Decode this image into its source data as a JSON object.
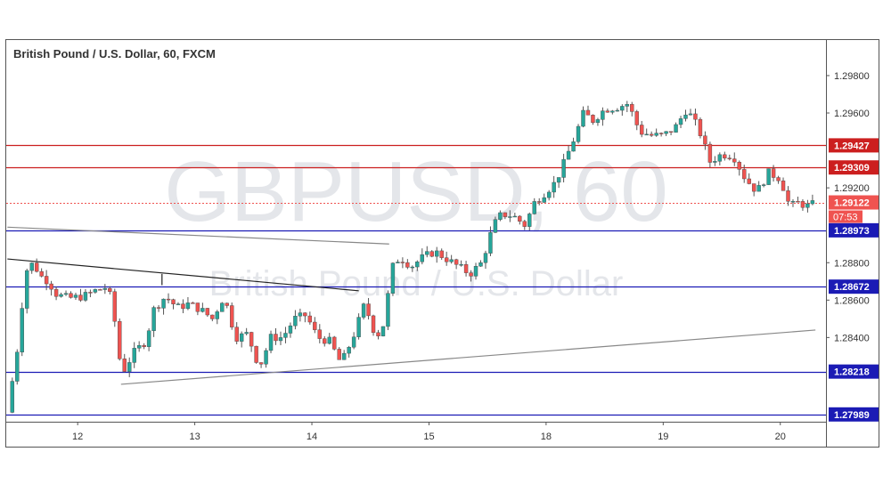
{
  "chart_data": {
    "type": "candlestick",
    "title": "British Pound / U.S. Dollar, 60, FXCM",
    "watermark": {
      "symbol": "GBPUSD, 60",
      "name": "British Pound / U.S. Dollar"
    },
    "y_ticks": [
      "1.29800",
      "1.29600",
      "1.29200",
      "1.28800",
      "1.28600",
      "1.28400"
    ],
    "ylim": [
      1.2795,
      1.2999
    ],
    "x_ticks": [
      {
        "label": "12",
        "t": 12.0
      },
      {
        "label": "13",
        "t": 13.0
      },
      {
        "label": "14",
        "t": 14.0
      },
      {
        "label": "15",
        "t": 15.0
      },
      {
        "label": "18",
        "t": 16.0
      },
      {
        "label": "19",
        "t": 17.0
      },
      {
        "label": "20",
        "t": 18.0
      }
    ],
    "xlim": [
      11.39,
      18.39
    ],
    "colors": {
      "up": "#26a69a",
      "down": "#ef5350",
      "wick": "#555555",
      "resistance": "#cc1f1f",
      "support": "#1b1bb5",
      "price": "#ef5350"
    },
    "current_price": {
      "label": "1.29122",
      "countdown": "07:53",
      "value": 1.29122
    },
    "levels": [
      {
        "label": "1.29427",
        "value": 1.29427,
        "kind": "resistance"
      },
      {
        "label": "1.29309",
        "value": 1.29309,
        "kind": "resistance"
      },
      {
        "label": "1.28973",
        "value": 1.28973,
        "kind": "support"
      },
      {
        "label": "1.28672",
        "value": 1.28672,
        "kind": "support"
      },
      {
        "label": "1.28218",
        "value": 1.28218,
        "kind": "support"
      },
      {
        "label": "1.27989",
        "value": 1.27989,
        "kind": "support"
      }
    ],
    "trendlines": [
      {
        "name": "upper-channel",
        "color": "#888888",
        "points": [
          [
            11.4,
            1.2899
          ],
          [
            14.66,
            1.289
          ]
        ]
      },
      {
        "name": "descending-line",
        "color": "#222222",
        "points": [
          [
            11.4,
            1.2882
          ],
          [
            14.4,
            1.2865
          ]
        ]
      },
      {
        "name": "ascending-line",
        "color": "#888888",
        "points": [
          [
            12.37,
            1.2815
          ],
          [
            18.3,
            1.2844
          ]
        ]
      },
      {
        "name": "short-connector",
        "color": "#222222",
        "points": [
          [
            12.72,
            1.2874
          ],
          [
            12.72,
            1.2868
          ]
        ]
      }
    ],
    "anchors": [
      [
        11.4,
        1.28
      ],
      [
        11.45,
        1.282
      ],
      [
        11.5,
        1.284
      ],
      [
        11.55,
        1.2875
      ],
      [
        11.62,
        1.288
      ],
      [
        11.68,
        1.2873
      ],
      [
        11.75,
        1.287
      ],
      [
        11.82,
        1.2863
      ],
      [
        11.92,
        1.2861
      ],
      [
        12.05,
        1.2862
      ],
      [
        12.15,
        1.2865
      ],
      [
        12.25,
        1.2867
      ],
      [
        12.3,
        1.2858
      ],
      [
        12.35,
        1.283
      ],
      [
        12.4,
        1.2823
      ],
      [
        12.48,
        1.2832
      ],
      [
        12.58,
        1.2838
      ],
      [
        12.65,
        1.2855
      ],
      [
        12.75,
        1.2862
      ],
      [
        12.85,
        1.2856
      ],
      [
        12.95,
        1.2858
      ],
      [
        13.05,
        1.2855
      ],
      [
        13.15,
        1.285
      ],
      [
        13.25,
        1.2862
      ],
      [
        13.35,
        1.284
      ],
      [
        13.45,
        1.2842
      ],
      [
        13.55,
        1.2824
      ],
      [
        13.65,
        1.284
      ],
      [
        13.75,
        1.284
      ],
      [
        13.85,
        1.285
      ],
      [
        13.95,
        1.2852
      ],
      [
        14.05,
        1.284
      ],
      [
        14.15,
        1.2838
      ],
      [
        14.25,
        1.2826
      ],
      [
        14.35,
        1.284
      ],
      [
        14.45,
        1.2858
      ],
      [
        14.55,
        1.284
      ],
      [
        14.62,
        1.2848
      ],
      [
        14.68,
        1.2877
      ],
      [
        14.75,
        1.2883
      ],
      [
        14.85,
        1.2878
      ],
      [
        14.95,
        1.2883
      ],
      [
        15.05,
        1.2886
      ],
      [
        15.15,
        1.2882
      ],
      [
        15.25,
        1.2878
      ],
      [
        15.35,
        1.2874
      ],
      [
        15.45,
        1.288
      ],
      [
        15.55,
        1.29
      ],
      [
        15.62,
        1.2906
      ],
      [
        15.72,
        1.2905
      ],
      [
        15.82,
        1.29
      ],
      [
        15.9,
        1.2912
      ],
      [
        16.0,
        1.2918
      ],
      [
        16.08,
        1.2923
      ],
      [
        16.15,
        1.2933
      ],
      [
        16.25,
        1.2948
      ],
      [
        16.32,
        1.296
      ],
      [
        16.4,
        1.2956
      ],
      [
        16.5,
        1.2962
      ],
      [
        16.6,
        1.2963
      ],
      [
        16.7,
        1.2965
      ],
      [
        16.8,
        1.295
      ],
      [
        16.9,
        1.2948
      ],
      [
        17.0,
        1.2948
      ],
      [
        17.1,
        1.2952
      ],
      [
        17.2,
        1.2962
      ],
      [
        17.3,
        1.2952
      ],
      [
        17.4,
        1.2934
      ],
      [
        17.5,
        1.2938
      ],
      [
        17.6,
        1.2937
      ],
      [
        17.7,
        1.2925
      ],
      [
        17.8,
        1.2918
      ],
      [
        17.9,
        1.2928
      ],
      [
        18.0,
        1.2925
      ],
      [
        18.08,
        1.291
      ],
      [
        18.15,
        1.2912
      ],
      [
        18.25,
        1.291
      ],
      [
        18.3,
        1.29122
      ]
    ]
  }
}
